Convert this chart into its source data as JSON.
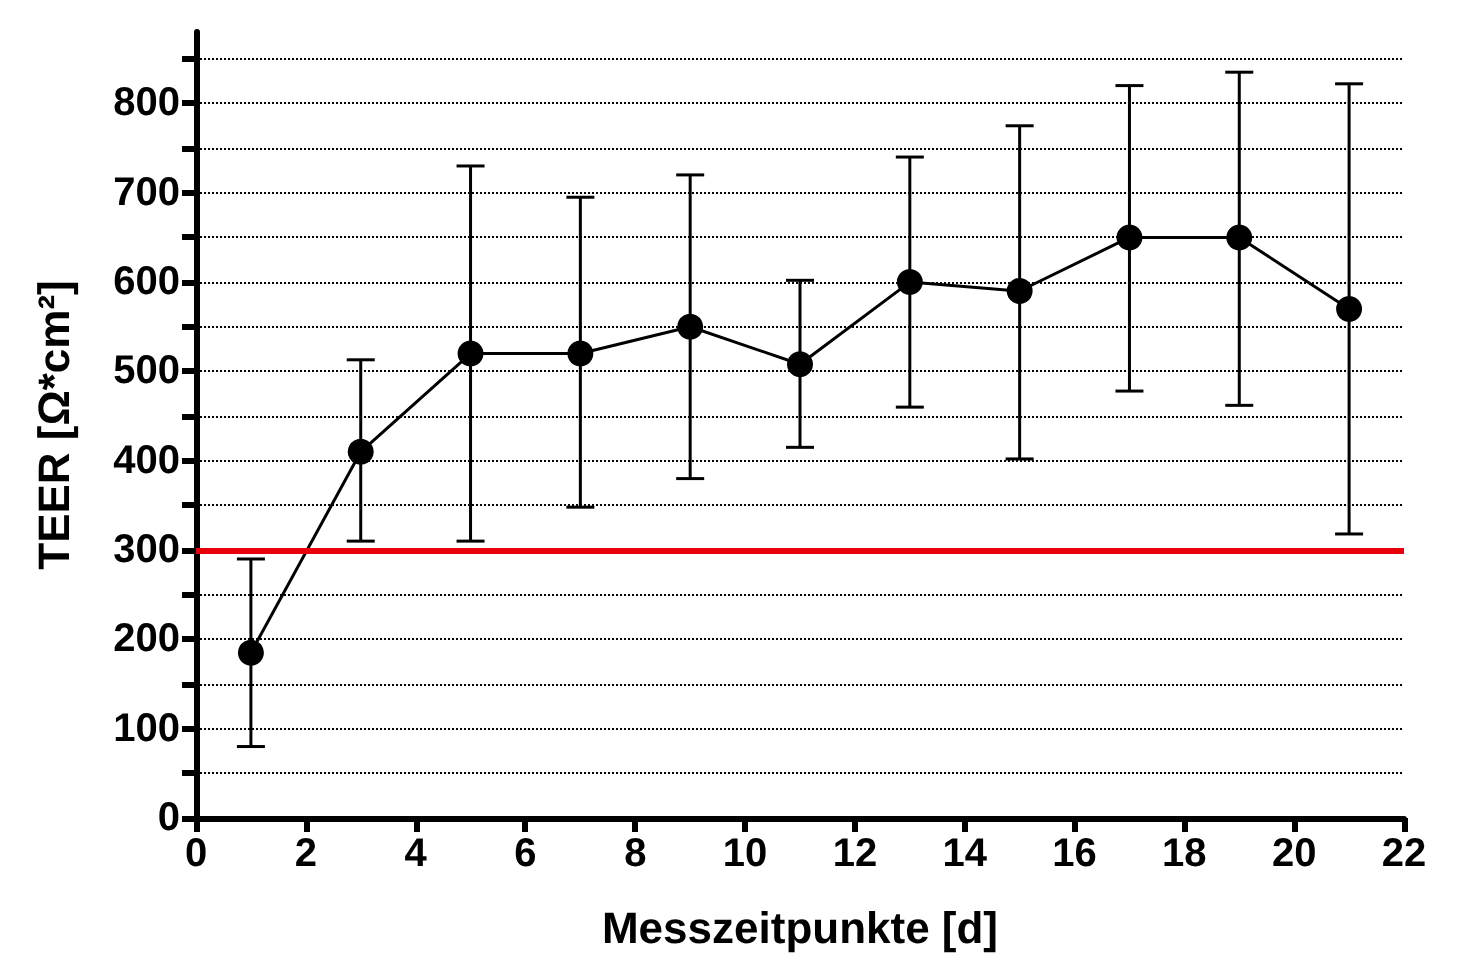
{
  "chart_data": {
    "type": "line",
    "xlabel": "Messzeitpunkte [d]",
    "ylabel": "TEER [Ω*cm²]",
    "x": [
      1,
      3,
      5,
      7,
      9,
      11,
      13,
      15,
      17,
      19,
      21
    ],
    "series": [
      {
        "color": "#000000",
        "values": [
          185,
          410,
          520,
          520,
          550,
          508,
          600,
          590,
          650,
          650,
          570
        ],
        "errors": [
          [
            80,
            290
          ],
          [
            310,
            513
          ],
          [
            310,
            730
          ],
          [
            348,
            695
          ],
          [
            380,
            720
          ],
          [
            415,
            602
          ],
          [
            460,
            740
          ],
          [
            402,
            775
          ],
          [
            478,
            820
          ],
          [
            462,
            835
          ],
          [
            318,
            822
          ]
        ]
      }
    ],
    "xlim": [
      0,
      22
    ],
    "xticks": [
      0,
      2,
      4,
      6,
      8,
      10,
      12,
      14,
      16,
      18,
      20,
      22
    ],
    "ylim": [
      0,
      880
    ],
    "yticks": [
      0,
      {
        "value": 50,
        "label": null
      },
      100,
      {
        "value": 150,
        "label": null
      },
      200,
      {
        "value": 250,
        "label": null
      },
      300,
      {
        "value": 350,
        "label": null
      },
      400,
      {
        "value": 450,
        "label": null
      },
      500,
      {
        "value": 550,
        "label": null
      },
      600,
      {
        "value": 650,
        "label": null
      },
      700,
      {
        "value": 750,
        "label": null
      },
      800,
      {
        "value": 850,
        "label": null
      }
    ],
    "ref_lines": [
      {
        "axis": "y",
        "value": 300,
        "color": "#e8000b",
        "line_style": "solid"
      }
    ],
    "grid": "y",
    "marker": "circle",
    "line_style": "solid"
  }
}
